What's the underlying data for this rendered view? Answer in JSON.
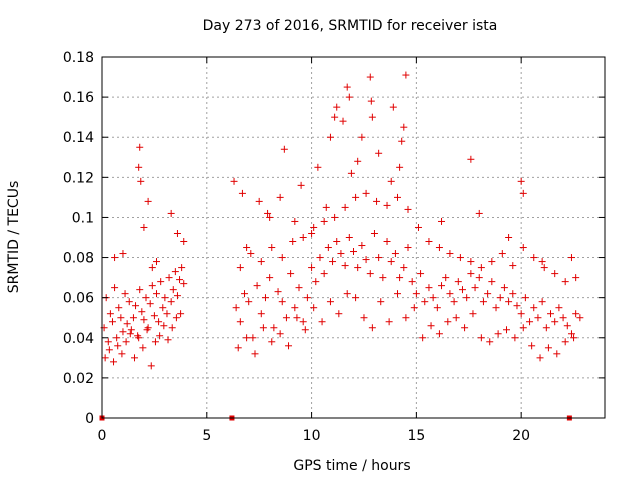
{
  "chart_data": {
    "type": "scatter",
    "title": "Day 273 of 2016, SRMTID for receiver ista",
    "xlabel": "GPS time / hours",
    "ylabel": "SRMTID / TECUs",
    "xlim": [
      0,
      24
    ],
    "ylim": [
      0,
      0.18
    ],
    "xticks": [
      "0",
      "5",
      "10",
      "15",
      "20"
    ],
    "yticks": [
      "0",
      "0.02",
      "0.04",
      "0.06",
      "0.08",
      "0.1",
      "0.12",
      "0.14",
      "0.16",
      "0.18"
    ],
    "grid": true,
    "marker": "+",
    "color": "#e00000",
    "gap_markers_x": [
      0.0,
      6.2,
      22.3
    ],
    "series": [
      {
        "values_note": "dense scatter; representative points read off the plot",
        "x": [
          0.1,
          0.2,
          0.3,
          0.4,
          0.5,
          0.6,
          0.7,
          0.8,
          0.9,
          1.0,
          1.1,
          1.2,
          1.3,
          1.4,
          1.5,
          1.6,
          1.7,
          1.8,
          1.9,
          2.0,
          2.1,
          2.2,
          2.3,
          2.4,
          2.5,
          2.6,
          2.7,
          2.8,
          2.9,
          3.0,
          3.1,
          3.2,
          3.3,
          3.4,
          3.5,
          3.6,
          3.7,
          3.8,
          3.9,
          0.15,
          0.35,
          0.55,
          0.75,
          0.95,
          1.15,
          1.35,
          1.55,
          1.75,
          1.95,
          2.15,
          2.35,
          2.55,
          2.75,
          2.95,
          3.15,
          3.35,
          3.55,
          3.75,
          1.75,
          1.8,
          1.85,
          2.0,
          2.2,
          3.3,
          3.6,
          3.9,
          0.6,
          1.0,
          2.4,
          2.6,
          6.4,
          6.6,
          6.8,
          7.0,
          7.2,
          7.4,
          7.6,
          7.8,
          8.0,
          8.2,
          8.4,
          8.6,
          8.8,
          9.0,
          9.2,
          9.4,
          9.6,
          9.8,
          10.0,
          10.2,
          10.4,
          10.6,
          10.8,
          11.0,
          11.2,
          11.4,
          11.6,
          11.8,
          12.0,
          12.2,
          12.4,
          12.6,
          12.8,
          13.0,
          13.2,
          13.4,
          13.6,
          13.8,
          14.0,
          14.2,
          14.4,
          14.6,
          14.8,
          15.0,
          15.2,
          15.4,
          15.6,
          15.8,
          16.0,
          16.2,
          16.4,
          16.6,
          16.8,
          17.0,
          17.2,
          17.4,
          17.6,
          17.8,
          18.0,
          18.2,
          18.4,
          18.6,
          18.8,
          19.0,
          19.2,
          19.4,
          19.6,
          19.8,
          20.0,
          20.2,
          20.4,
          20.6,
          20.8,
          21.0,
          21.2,
          21.4,
          21.6,
          21.8,
          22.0,
          22.2,
          22.4,
          22.6,
          22.8,
          6.5,
          6.9,
          7.3,
          7.7,
          8.1,
          8.5,
          8.9,
          9.3,
          9.7,
          10.1,
          10.5,
          10.9,
          11.3,
          11.7,
          12.1,
          12.5,
          12.9,
          13.3,
          13.7,
          14.1,
          14.5,
          14.9,
          15.3,
          15.7,
          16.1,
          16.5,
          16.9,
          17.3,
          17.7,
          18.1,
          18.5,
          18.9,
          19.3,
          19.7,
          20.1,
          20.5,
          20.9,
          21.3,
          21.7,
          22.1,
          22.5,
          6.6,
          7.1,
          7.6,
          8.1,
          8.6,
          9.1,
          9.6,
          10.1,
          10.6,
          11.1,
          11.6,
          12.1,
          12.6,
          13.1,
          13.6,
          14.1,
          14.6,
          15.1,
          15.6,
          16.1,
          16.6,
          17.1,
          17.6,
          18.1,
          18.6,
          19.1,
          19.6,
          20.1,
          20.6,
          21.1,
          21.6,
          22.1,
          22.6,
          6.3,
          6.7,
          7.5,
          8.7,
          9.5,
          10.3,
          10.9,
          11.5,
          11.7,
          11.8,
          12.8,
          12.85,
          12.9,
          13.9,
          14.3,
          14.4,
          14.5,
          14.2,
          13.8,
          11.1,
          11.2,
          12.4,
          13.2,
          12.2,
          11.9,
          10.7,
          8.5,
          8.0,
          16.2,
          17.6,
          18.0,
          19.4,
          20.0,
          20.1,
          21.0,
          22.4,
          9.2,
          7.9,
          6.9,
          10.0
        ],
        "y": [
          0.045,
          0.06,
          0.038,
          0.052,
          0.048,
          0.065,
          0.04,
          0.055,
          0.05,
          0.043,
          0.062,
          0.047,
          0.058,
          0.044,
          0.05,
          0.056,
          0.041,
          0.064,
          0.053,
          0.049,
          0.06,
          0.045,
          0.057,
          0.066,
          0.051,
          0.062,
          0.048,
          0.068,
          0.055,
          0.06,
          0.052,
          0.07,
          0.058,
          0.064,
          0.073,
          0.061,
          0.069,
          0.075,
          0.067,
          0.03,
          0.034,
          0.028,
          0.036,
          0.032,
          0.038,
          0.042,
          0.03,
          0.04,
          0.035,
          0.044,
          0.026,
          0.038,
          0.041,
          0.046,
          0.039,
          0.045,
          0.05,
          0.052,
          0.125,
          0.135,
          0.118,
          0.095,
          0.108,
          0.102,
          0.092,
          0.088,
          0.08,
          0.082,
          0.075,
          0.078,
          0.055,
          0.048,
          0.062,
          0.058,
          0.04,
          0.066,
          0.052,
          0.06,
          0.07,
          0.045,
          0.063,
          0.058,
          0.05,
          0.072,
          0.055,
          0.065,
          0.048,
          0.06,
          0.075,
          0.068,
          0.08,
          0.072,
          0.085,
          0.078,
          0.088,
          0.082,
          0.076,
          0.09,
          0.083,
          0.075,
          0.086,
          0.079,
          0.072,
          0.092,
          0.08,
          0.07,
          0.088,
          0.078,
          0.082,
          0.07,
          0.075,
          0.085,
          0.068,
          0.062,
          0.072,
          0.058,
          0.065,
          0.06,
          0.055,
          0.066,
          0.07,
          0.062,
          0.058,
          0.068,
          0.064,
          0.06,
          0.072,
          0.065,
          0.07,
          0.058,
          0.062,
          0.068,
          0.055,
          0.06,
          0.065,
          0.058,
          0.062,
          0.056,
          0.052,
          0.06,
          0.048,
          0.055,
          0.05,
          0.058,
          0.045,
          0.052,
          0.048,
          0.055,
          0.05,
          0.046,
          0.042,
          0.052,
          0.05,
          0.035,
          0.04,
          0.032,
          0.045,
          0.038,
          0.042,
          0.036,
          0.05,
          0.044,
          0.055,
          0.048,
          0.058,
          0.052,
          0.062,
          0.06,
          0.05,
          0.045,
          0.058,
          0.048,
          0.062,
          0.05,
          0.055,
          0.04,
          0.046,
          0.042,
          0.048,
          0.05,
          0.045,
          0.052,
          0.04,
          0.038,
          0.042,
          0.044,
          0.04,
          0.045,
          0.036,
          0.03,
          0.035,
          0.032,
          0.038,
          0.04,
          0.075,
          0.082,
          0.078,
          0.085,
          0.08,
          0.088,
          0.09,
          0.095,
          0.098,
          0.1,
          0.105,
          0.11,
          0.112,
          0.108,
          0.106,
          0.11,
          0.104,
          0.095,
          0.088,
          0.085,
          0.082,
          0.08,
          0.078,
          0.075,
          0.078,
          0.082,
          0.076,
          0.085,
          0.08,
          0.075,
          0.072,
          0.068,
          0.07,
          0.118,
          0.112,
          0.108,
          0.134,
          0.116,
          0.125,
          0.14,
          0.148,
          0.165,
          0.16,
          0.17,
          0.158,
          0.15,
          0.155,
          0.138,
          0.145,
          0.171,
          0.125,
          0.118,
          0.15,
          0.155,
          0.14,
          0.132,
          0.128,
          0.122,
          0.105,
          0.11,
          0.1,
          0.098,
          0.129,
          0.102,
          0.09,
          0.118,
          0.112,
          0.078,
          0.08,
          0.098,
          0.102,
          0.085,
          0.092
        ]
      }
    ]
  }
}
